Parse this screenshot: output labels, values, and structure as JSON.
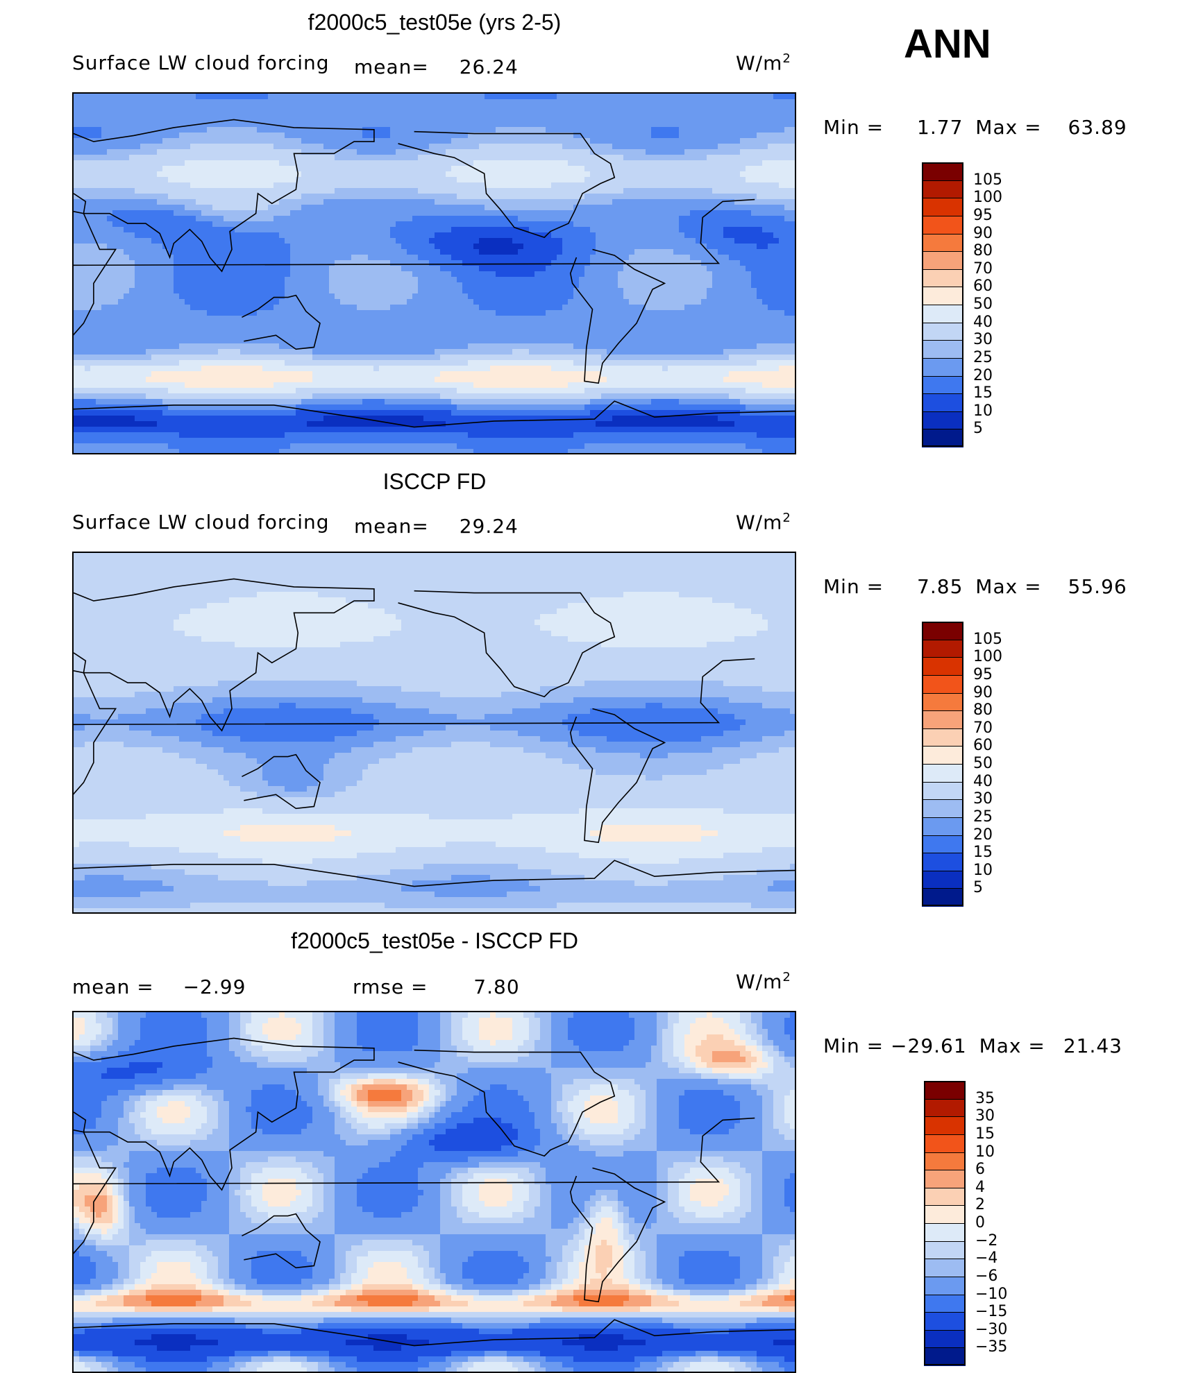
{
  "season": "ANN",
  "units_html": "W/m",
  "units_sup": "2",
  "panels": [
    {
      "title": "f2000c5_test05e (yrs 2-5)",
      "left_label": "Surface LW cloud forcing",
      "mid_label": "mean=",
      "mid_value": "26.24",
      "minmax_label": "Min =",
      "min_value": "1.77",
      "max_label": "Max =",
      "max_value": "63.89",
      "levels": [
        "105",
        "100",
        "95",
        "90",
        "80",
        "70",
        "60",
        "50",
        "40",
        "30",
        "25",
        "20",
        "15",
        "10",
        "5"
      ],
      "field": "model"
    },
    {
      "title": "ISCCP FD",
      "left_label": "Surface LW cloud forcing",
      "mid_label": "mean=",
      "mid_value": "29.24",
      "minmax_label": "Min =",
      "min_value": "7.85",
      "max_label": "Max =",
      "max_value": "55.96",
      "levels": [
        "105",
        "100",
        "95",
        "90",
        "80",
        "70",
        "60",
        "50",
        "40",
        "30",
        "25",
        "20",
        "15",
        "10",
        "5"
      ],
      "field": "obs"
    },
    {
      "title": "f2000c5_test05e - ISCCP FD",
      "left_label": "mean =",
      "left_value": "−2.99",
      "mid_label": "rmse =",
      "mid_value": "7.80",
      "minmax_label": "Min =",
      "min_value": "−29.61",
      "max_label": "Max =",
      "max_value": "21.43",
      "levels": [
        "35",
        "30",
        "15",
        "10",
        "6",
        "4",
        "2",
        "0",
        "−2",
        "−4",
        "−6",
        "−10",
        "−15",
        "−30",
        "−35"
      ],
      "field": "diff"
    }
  ],
  "colormap": [
    "#7a0000",
    "#b21a00",
    "#d93300",
    "#f2541a",
    "#f57a3d",
    "#f7a37a",
    "#fbd0b4",
    "#fdebdb",
    "#ddeaf8",
    "#c2d6f5",
    "#9dbcf2",
    "#6b9af0",
    "#3f78ef",
    "#1d4fe0",
    "#0a2fc0",
    "#001a8c"
  ],
  "diff_colormap": [
    "#7a0000",
    "#b21a00",
    "#d93300",
    "#f2541a",
    "#f57a3d",
    "#f7a37a",
    "#fbd0b4",
    "#fdebdb",
    "#ddeaf8",
    "#c2d6f5",
    "#9dbcf2",
    "#6b9af0",
    "#3f78ef",
    "#1d4fe0",
    "#0a2fc0",
    "#001a8c"
  ]
}
